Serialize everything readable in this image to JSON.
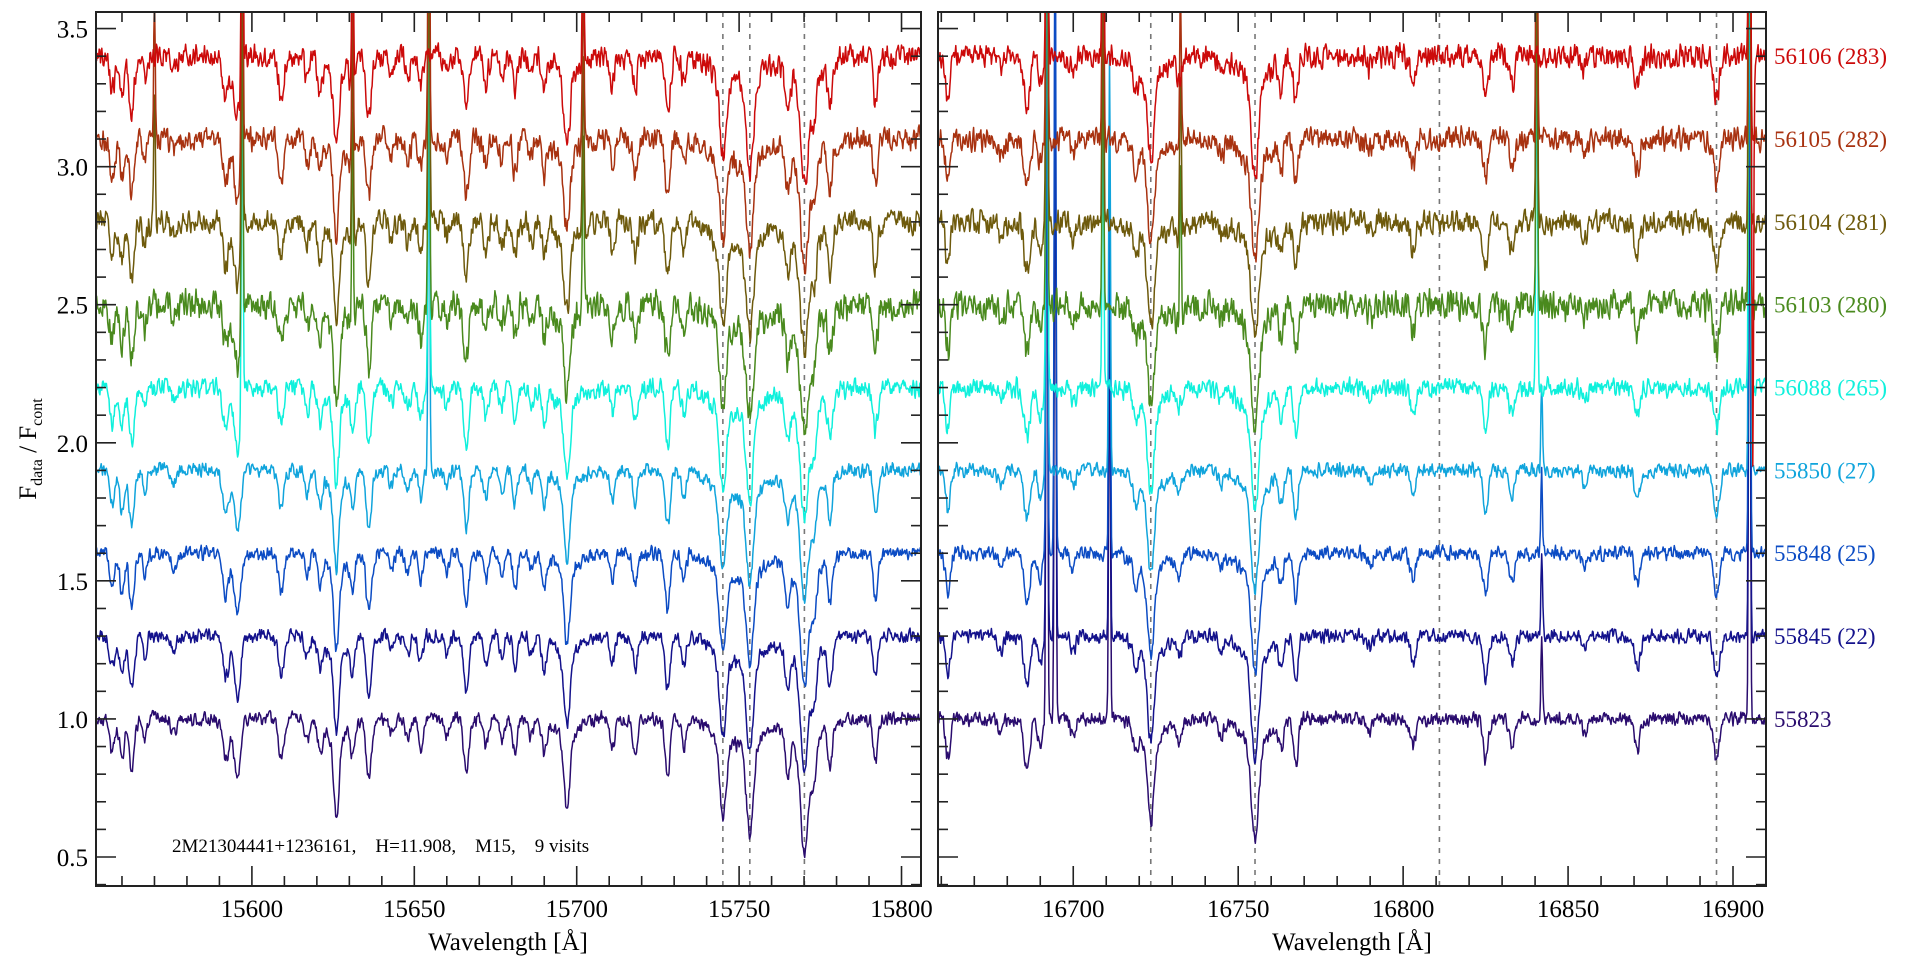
{
  "chart_data": {
    "type": "line",
    "ylabel": {
      "main_a": "F",
      "sub_a": "data",
      "sep": " / ",
      "main_b": "F",
      "sub_b": "cont"
    },
    "ylim": [
      0.395,
      3.56
    ],
    "yticks": [
      "0.5",
      "1.0",
      "1.5",
      "2.0",
      "2.5",
      "3.0",
      "3.5"
    ],
    "annotation": "2M21304441+1236161,    H=11.908,    M15,    9 visits",
    "panels": [
      {
        "xlabel": "Wavelength [Å]",
        "xlim": [
          15552,
          15806
        ],
        "xticks": [
          "15600",
          "15650",
          "15700",
          "15750",
          "15800"
        ],
        "dashed_lines": [
          15745.0,
          15753.3,
          15770.1
        ],
        "absorption_lines": [
          [
            15557,
            0.12,
            0.8
          ],
          [
            15560,
            0.15,
            0.7
          ],
          [
            15563,
            0.2,
            0.8
          ],
          [
            15567,
            0.08,
            0.6
          ],
          [
            15576,
            0.05,
            0.8
          ],
          [
            15592,
            0.15,
            1.0
          ],
          [
            15595.5,
            0.22,
            1.0
          ],
          [
            15609,
            0.14,
            0.8
          ],
          [
            15617,
            0.08,
            0.7
          ],
          [
            15621,
            0.1,
            0.7
          ],
          [
            15626,
            0.28,
            0.8
          ],
          [
            15631,
            0.12,
            0.7
          ],
          [
            15636,
            0.22,
            0.8
          ],
          [
            15643,
            0.06,
            0.7
          ],
          [
            15648,
            0.08,
            0.7
          ],
          [
            15652,
            0.1,
            0.7
          ],
          [
            15660,
            0.06,
            0.7
          ],
          [
            15666,
            0.2,
            0.8
          ],
          [
            15672,
            0.1,
            0.7
          ],
          [
            15677,
            0.07,
            0.7
          ],
          [
            15681,
            0.12,
            0.7
          ],
          [
            15686,
            0.07,
            0.7
          ],
          [
            15690,
            0.12,
            0.7
          ],
          [
            15697,
            0.26,
            0.9
          ],
          [
            15711,
            0.1,
            0.7
          ],
          [
            15718,
            0.12,
            0.7
          ],
          [
            15728,
            0.2,
            0.8
          ],
          [
            15733,
            0.1,
            0.7
          ],
          [
            15745,
            0.28,
            1.0
          ],
          [
            15753.3,
            0.32,
            1.1
          ],
          [
            15765,
            0.14,
            0.8
          ],
          [
            15770.1,
            0.38,
            1.2
          ],
          [
            15773,
            0.16,
            0.8
          ],
          [
            15778,
            0.16,
            0.7
          ],
          [
            15792,
            0.16,
            0.7
          ]
        ],
        "emission_spikes": [
          [
            15570,
            0.5,
            [
              6,
              7
            ]
          ],
          [
            15597,
            1.2,
            [
              4,
              5,
              6,
              7,
              8
            ]
          ],
          [
            15631,
            0.8,
            [
              5,
              6,
              7,
              8
            ]
          ],
          [
            15654.5,
            1.5,
            [
              3,
              4,
              5,
              6,
              7
            ]
          ],
          [
            15702,
            0.6,
            [
              5,
              6,
              7,
              8
            ]
          ]
        ]
      },
      {
        "xlabel": "Wavelength [Å]",
        "xlim": [
          16659,
          16910
        ],
        "xticks": [
          "16700",
          "16750",
          "16800",
          "16850",
          "16900"
        ],
        "dashed_lines": [
          16723.5,
          16755.1,
          16811.0,
          16895.0
        ],
        "absorption_lines": [
          [
            16662,
            0.15,
            0.7
          ],
          [
            16678,
            0.05,
            0.8
          ],
          [
            16686,
            0.18,
            0.9
          ],
          [
            16690,
            0.1,
            0.7
          ],
          [
            16700,
            0.06,
            0.7
          ],
          [
            16719,
            0.08,
            0.8
          ],
          [
            16723.5,
            0.3,
            1.0
          ],
          [
            16732,
            0.07,
            0.8
          ],
          [
            16745,
            0.05,
            0.8
          ],
          [
            16755.1,
            0.35,
            1.1
          ],
          [
            16763,
            0.1,
            0.7
          ],
          [
            16767.5,
            0.16,
            0.7
          ],
          [
            16790,
            0.04,
            0.8
          ],
          [
            16803,
            0.1,
            0.8
          ],
          [
            16825,
            0.15,
            0.8
          ],
          [
            16833,
            0.1,
            0.8
          ],
          [
            16855,
            0.05,
            0.8
          ],
          [
            16871,
            0.12,
            0.8
          ],
          [
            16895,
            0.15,
            0.9
          ]
        ],
        "emission_spikes": [
          [
            16692,
            2.5,
            [
              0,
              1,
              2,
              3,
              4,
              5,
              6,
              7,
              8
            ]
          ],
          [
            16694.5,
            2.5,
            [
              0,
              1,
              2
            ]
          ],
          [
            16709,
            1.0,
            [
              4,
              5,
              6,
              7,
              8
            ]
          ],
          [
            16711,
            1.5,
            [
              0,
              1,
              2,
              3
            ]
          ],
          [
            16732.5,
            0.6,
            [
              5,
              6,
              7
            ]
          ],
          [
            16840.5,
            1.3,
            [
              4,
              5,
              6,
              7
            ]
          ],
          [
            16842,
            0.3,
            [
              0,
              1,
              2,
              3
            ]
          ],
          [
            16905,
            2.5,
            [
              0,
              1,
              2,
              3,
              4,
              5,
              6,
              7,
              8
            ]
          ],
          [
            16906,
            -1.5,
            [
              8
            ]
          ]
        ]
      }
    ],
    "series": [
      {
        "name": "55823",
        "label": "55823",
        "offset": 0.0,
        "color": "#2a0c6e",
        "noise": 0.012
      },
      {
        "name": "55845",
        "label": "55845 (22)",
        "offset": 0.3,
        "color": "#14128c",
        "noise": 0.012
      },
      {
        "name": "55848",
        "label": "55848 (25)",
        "offset": 0.6,
        "color": "#0c4cc4",
        "noise": 0.012
      },
      {
        "name": "55850",
        "label": "55850 (27)",
        "offset": 0.9,
        "color": "#10a4dc",
        "noise": 0.012
      },
      {
        "name": "56088",
        "label": "56088 (265)",
        "offset": 1.2,
        "color": "#10f0dc",
        "noise": 0.016
      },
      {
        "name": "56103",
        "label": "56103 (280)",
        "offset": 1.5,
        "color": "#4a8a1e",
        "noise": 0.025
      },
      {
        "name": "56104",
        "label": "56104 (281)",
        "offset": 1.8,
        "color": "#6e5a0c",
        "noise": 0.02
      },
      {
        "name": "56105",
        "label": "56105 (282)",
        "offset": 2.1,
        "color": "#a83210",
        "noise": 0.02
      },
      {
        "name": "56106",
        "label": "56106 (283)",
        "offset": 2.4,
        "color": "#cc0a0a",
        "noise": 0.02
      }
    ]
  }
}
